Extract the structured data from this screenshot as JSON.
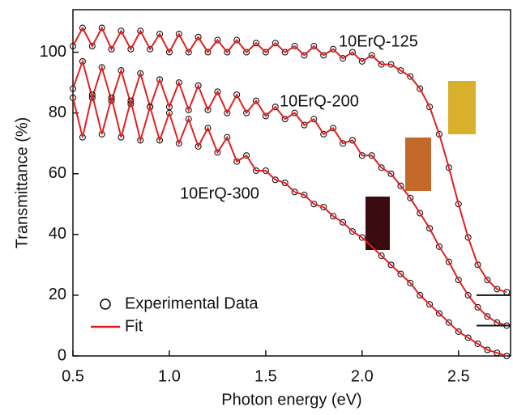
{
  "chart_data": {
    "type": "line",
    "x_label": "Photon energy (eV)",
    "y_label": "Transmittance (%)",
    "xlim": [
      0.5,
      2.77
    ],
    "ylim": [
      0,
      114
    ],
    "xticks": [
      0.5,
      {
        "value": 1.0,
        "label": "1.0"
      },
      1.5,
      {
        "value": 2.0,
        "label": "2.0"
      },
      2.5
    ],
    "yticks": [
      0,
      20,
      40,
      60,
      80,
      100
    ],
    "x": [
      0.5,
      0.55,
      0.6,
      0.65,
      0.7,
      0.75,
      0.8,
      0.85,
      0.9,
      0.95,
      1.0,
      1.05,
      1.1,
      1.15,
      1.2,
      1.25,
      1.3,
      1.35,
      1.4,
      1.45,
      1.5,
      1.55,
      1.6,
      1.65,
      1.7,
      1.75,
      1.8,
      1.85,
      1.9,
      1.95,
      2.0,
      2.05,
      2.1,
      2.15,
      2.2,
      2.25,
      2.3,
      2.35,
      2.4,
      2.45,
      2.5,
      2.55,
      2.6,
      2.65,
      2.7,
      2.75
    ],
    "series": [
      {
        "name": "Experimental Data",
        "color": "#000000",
        "marker": "circle"
      },
      {
        "name": "Fit",
        "color": "#e02020",
        "marker": "line"
      }
    ],
    "legend": "lower left",
    "offset_markers": [
      20,
      10
    ],
    "samples": [
      {
        "label": "10ErQ-125",
        "experimental": [
          102,
          108,
          102,
          108,
          101,
          107,
          101,
          107,
          101,
          106,
          100,
          106,
          100,
          105,
          100,
          104,
          100,
          104,
          100,
          103,
          100,
          103,
          100,
          102,
          99,
          102,
          99,
          101,
          98,
          100,
          97,
          99,
          96,
          96,
          94,
          92,
          88,
          82,
          73,
          62,
          50,
          39,
          30,
          25,
          22,
          21
        ],
        "fit": [
          102,
          108,
          102,
          108,
          101,
          107,
          101,
          107,
          101,
          106,
          100,
          106,
          100,
          105,
          100,
          104,
          100,
          104,
          100,
          103,
          100,
          103,
          100,
          102,
          99,
          102,
          99,
          101,
          98,
          100,
          97,
          99,
          96,
          96,
          94,
          92,
          88,
          82,
          73,
          62,
          50,
          39,
          30,
          25,
          22,
          21
        ]
      },
      {
        "label": "10ErQ-200",
        "experimental": [
          88,
          97,
          85,
          95,
          84,
          94,
          83,
          93,
          82,
          91,
          82,
          90,
          81,
          89,
          81,
          87,
          80,
          86,
          80,
          84,
          79,
          82,
          78,
          80,
          76,
          78,
          73,
          75,
          70,
          71,
          66,
          66,
          62,
          60,
          56,
          52,
          47,
          42,
          36,
          31,
          25,
          20,
          16,
          13,
          11,
          10
        ],
        "fit": [
          88,
          97,
          85,
          95,
          84,
          94,
          83,
          93,
          82,
          91,
          82,
          90,
          81,
          89,
          81,
          87,
          80,
          86,
          80,
          84,
          79,
          82,
          78,
          80,
          76,
          78,
          73,
          75,
          70,
          71,
          66,
          66,
          62,
          60,
          56,
          52,
          47,
          42,
          36,
          31,
          25,
          20,
          16,
          13,
          11,
          10
        ]
      },
      {
        "label": "10ErQ-300",
        "experimental": [
          85,
          72,
          86,
          73,
          85,
          72,
          84,
          71,
          82,
          71,
          80,
          70,
          78,
          69,
          75,
          67,
          72,
          64,
          66,
          61,
          61,
          58,
          57,
          54,
          53,
          50,
          49,
          46,
          44,
          41,
          39,
          36,
          33,
          30,
          27,
          24,
          20,
          17,
          14,
          11,
          8,
          6,
          4,
          2,
          1,
          0
        ],
        "fit": [
          85,
          72,
          86,
          73,
          85,
          72,
          84,
          71,
          82,
          71,
          80,
          70,
          78,
          69,
          75,
          67,
          72,
          64,
          66,
          61,
          61,
          58,
          57,
          54,
          53,
          50,
          49,
          46,
          44,
          41,
          39,
          36,
          33,
          30,
          27,
          24,
          20,
          17,
          14,
          11,
          8,
          6,
          4,
          2,
          1,
          0
        ]
      }
    ]
  }
}
